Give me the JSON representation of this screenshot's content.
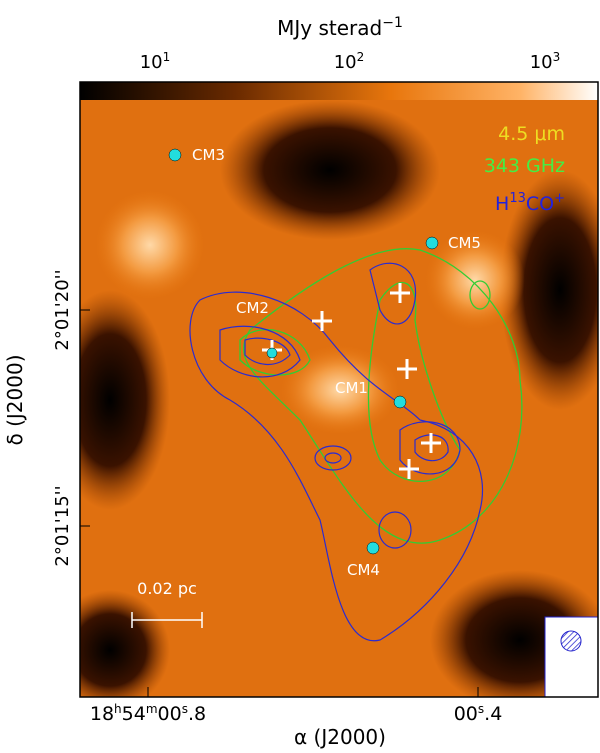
{
  "colorbar": {
    "label": {
      "text": "MJy sterad",
      "exp": "−1"
    },
    "ticks": [
      {
        "base": "10",
        "exp": "1"
      },
      {
        "base": "10",
        "exp": "2"
      },
      {
        "base": "10",
        "exp": "3"
      }
    ]
  },
  "legend": {
    "items": [
      {
        "text": "4.5 μm"
      },
      {
        "text": "343 GHz"
      },
      {
        "parts": [
          "H",
          "13",
          "CO",
          "+"
        ]
      }
    ]
  },
  "sources": [
    {
      "label": "CM3"
    },
    {
      "label": "CM5"
    },
    {
      "label": "CM2"
    },
    {
      "label": "CM1"
    },
    {
      "label": "CM4"
    }
  ],
  "scale_bar": {
    "label": "0.02 pc"
  },
  "y_axis": {
    "label": "δ (J2000)",
    "ticks": [
      "2°01'20''",
      "2°01'15''"
    ]
  },
  "x_axis": {
    "label": "α (J2000)",
    "ticks": [
      {
        "parts": [
          "18",
          "h",
          "54",
          "m",
          "00",
          "s",
          ".8"
        ]
      },
      {
        "parts": [
          "00",
          "s",
          ".4"
        ]
      }
    ]
  }
}
